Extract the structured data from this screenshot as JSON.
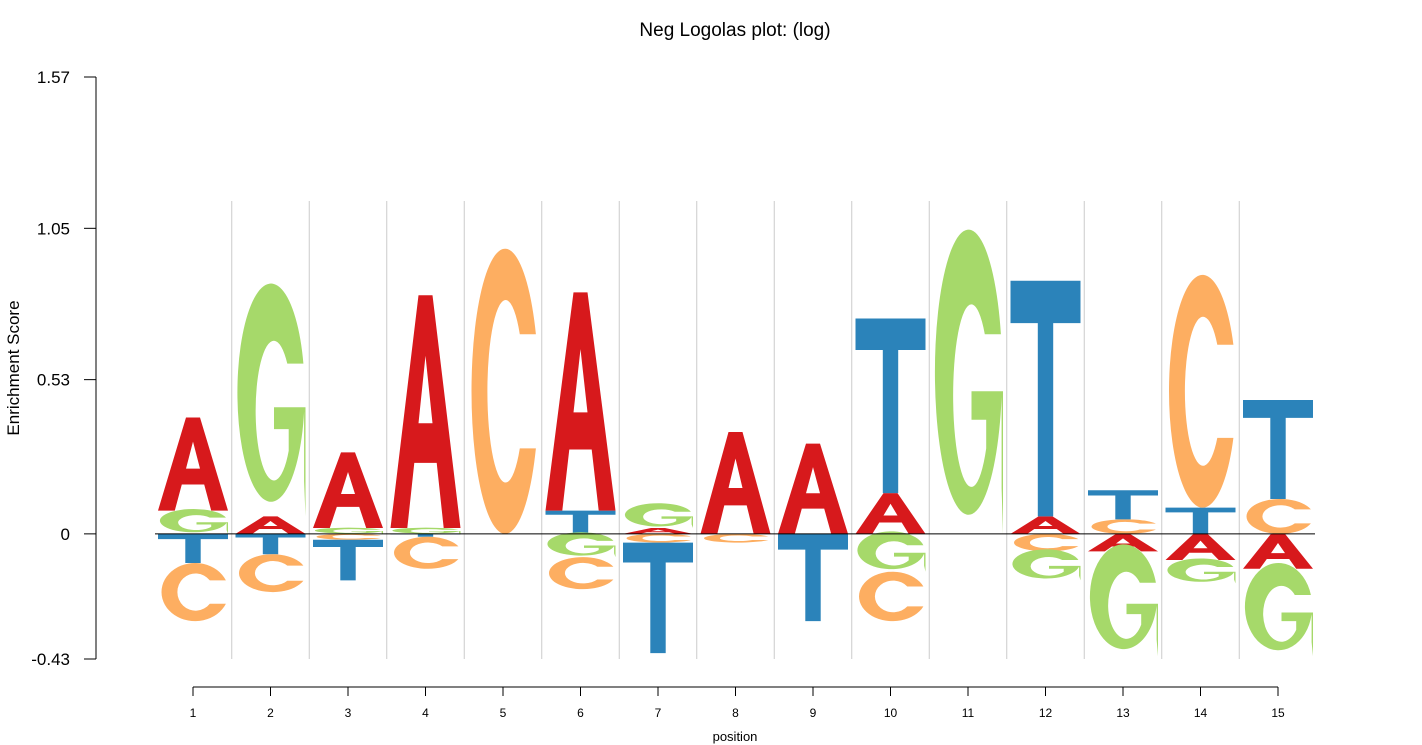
{
  "chart_data": {
    "type": "sequence-logo",
    "title": "Neg Logolas plot: (log)",
    "xlabel": "position",
    "ylabel": "Enrichment Score",
    "ylim": [
      -0.43,
      1.57
    ],
    "yticks": [
      "1.57",
      "1.05",
      "0.53",
      "0",
      "-0.43"
    ],
    "ytick_values": [
      1.57,
      1.05,
      0.53,
      0,
      -0.43
    ],
    "positions": [
      "1",
      "2",
      "3",
      "4",
      "5",
      "6",
      "7",
      "8",
      "9",
      "10",
      "11",
      "12",
      "13",
      "14",
      "15"
    ],
    "colors": {
      "A": "#d7191c",
      "C": "#fdae61",
      "G": "#a6d96a",
      "T": "#2b83ba"
    },
    "stacks": [
      {
        "position": "1",
        "positive": [
          [
            "G",
            0.08
          ],
          [
            "A",
            0.32
          ]
        ],
        "negative": [
          [
            "T",
            0.1
          ],
          [
            "C",
            0.2
          ]
        ]
      },
      {
        "position": "2",
        "positive": [
          [
            "A",
            0.06
          ],
          [
            "G",
            0.75
          ]
        ],
        "negative": [
          [
            "T",
            0.07
          ],
          [
            "C",
            0.13
          ]
        ]
      },
      {
        "position": "3",
        "positive": [
          [
            "G",
            0.02
          ],
          [
            "A",
            0.26
          ]
        ],
        "negative": [
          [
            "C",
            0.02
          ],
          [
            "T",
            0.14
          ]
        ]
      },
      {
        "position": "4",
        "positive": [
          [
            "G",
            0.02
          ],
          [
            "A",
            0.8
          ]
        ],
        "negative": [
          [
            "T",
            0.01
          ],
          [
            "C",
            0.11
          ]
        ]
      },
      {
        "position": "5",
        "positive": [
          [
            "C",
            0.98
          ]
        ],
        "negative": []
      },
      {
        "position": "6",
        "positive": [
          [
            "T",
            0.08
          ],
          [
            "A",
            0.75
          ]
        ],
        "negative": [
          [
            "G",
            0.08
          ],
          [
            "C",
            0.11
          ]
        ]
      },
      {
        "position": "7",
        "positive": [
          [
            "A",
            0.02
          ],
          [
            "G",
            0.08
          ]
        ],
        "negative": [
          [
            "C",
            0.03
          ],
          [
            "T",
            0.38
          ]
        ]
      },
      {
        "position": "8",
        "positive": [
          [
            "A",
            0.35
          ]
        ],
        "negative": [
          [
            "C",
            0.03
          ]
        ]
      },
      {
        "position": "9",
        "positive": [
          [
            "A",
            0.31
          ]
        ],
        "negative": [
          [
            "T",
            0.3
          ]
        ]
      },
      {
        "position": "10",
        "positive": [
          [
            "A",
            0.14
          ],
          [
            "T",
            0.6
          ]
        ],
        "negative": [
          [
            "G",
            0.13
          ],
          [
            "C",
            0.17
          ]
        ]
      },
      {
        "position": "11",
        "positive": [
          [
            "G",
            0.98
          ]
        ],
        "negative": []
      },
      {
        "position": "12",
        "positive": [
          [
            "A",
            0.06
          ],
          [
            "T",
            0.81
          ]
        ],
        "negative": [
          [
            "C",
            0.06
          ],
          [
            "G",
            0.1
          ]
        ]
      },
      {
        "position": "13",
        "positive": [
          [
            "C",
            0.05
          ],
          [
            "T",
            0.1
          ]
        ],
        "negative": [
          [
            "A",
            0.06
          ],
          [
            "G",
            0.36
          ]
        ]
      },
      {
        "position": "14",
        "positive": [
          [
            "T",
            0.09
          ],
          [
            "C",
            0.8
          ]
        ],
        "negative": [
          [
            "A",
            0.09
          ],
          [
            "G",
            0.08
          ]
        ]
      },
      {
        "position": "15",
        "positive": [
          [
            "C",
            0.12
          ],
          [
            "T",
            0.34
          ]
        ],
        "negative": [
          [
            "A",
            0.12
          ],
          [
            "G",
            0.3
          ]
        ]
      }
    ]
  }
}
